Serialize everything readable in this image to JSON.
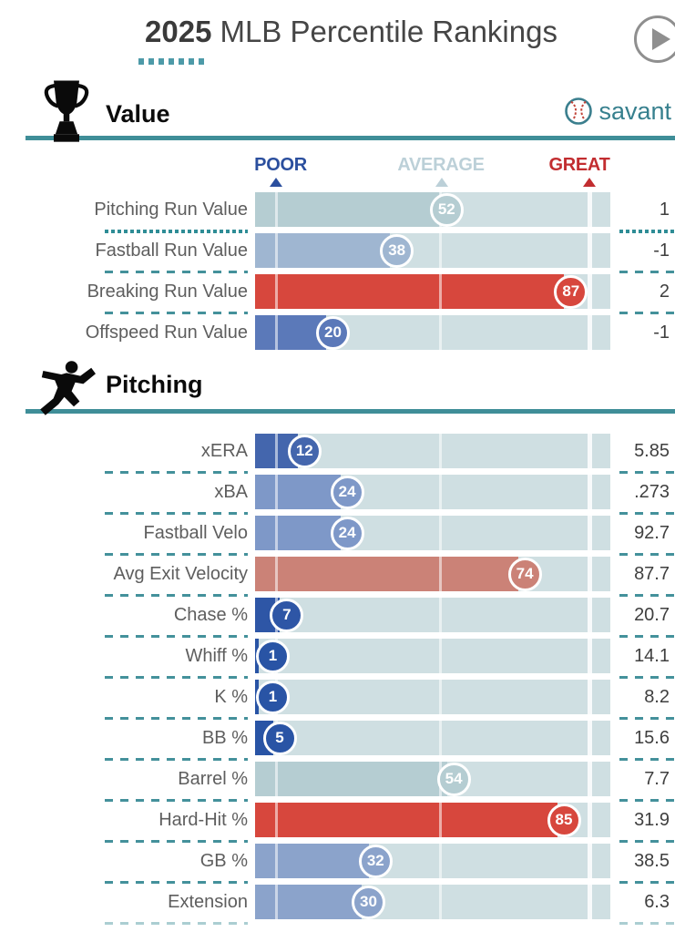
{
  "page": {
    "title_year": "2025",
    "title_rest": "MLB Percentile Rankings"
  },
  "controls": {
    "play_button": "play"
  },
  "brand": {
    "logo_text": "savant"
  },
  "scale_labels": {
    "poor": "POOR",
    "average": "AVERAGE",
    "great": "GREAT"
  },
  "colors": {
    "accent_teal": "#3f8e98",
    "separator_teal": "#44919b",
    "track": "#cfdfe2",
    "poor_label": "#2b4f9e",
    "average_label": "#bcd0d8",
    "great_label": "#c22d30",
    "savant_text": "#37808e",
    "title_text": "#454545",
    "row_label": "#5e5e5e",
    "row_value": "#3f3f3f"
  },
  "chart_data": {
    "type": "bar",
    "orientation": "horizontal",
    "title": "2025 MLB Percentile Rankings",
    "scale": {
      "min": 0,
      "max": 100,
      "markers": {
        "poor_pct": 5.9,
        "average_pct": 52,
        "great_pct": 94.1
      }
    },
    "sections": [
      {
        "title": "Value",
        "icon": "trophy-icon",
        "rows": [
          {
            "label": "Pitching Run Value",
            "percentile": 52,
            "value": "1",
            "bar_color": "#b5cdd2",
            "separator_after": "dotted"
          },
          {
            "label": "Fastball Run Value",
            "percentile": 38,
            "value": "-1",
            "bar_color": "#9fb6d1",
            "separator_after": "dashed"
          },
          {
            "label": "Breaking Run Value",
            "percentile": 87,
            "value": "2",
            "bar_color": "#d7473d",
            "separator_after": "dashed"
          },
          {
            "label": "Offspeed Run Value",
            "percentile": 20,
            "value": "-1",
            "bar_color": "#5b79b9",
            "separator_after": "none"
          }
        ]
      },
      {
        "title": "Pitching",
        "icon": "pitcher-icon",
        "rows": [
          {
            "label": "xERA",
            "percentile": 12,
            "value": "5.85",
            "bar_color": "#4466ad",
            "separator_after": "dashed"
          },
          {
            "label": "xBA",
            "percentile": 24,
            "value": ".273",
            "bar_color": "#7e98c8",
            "separator_after": "dashed"
          },
          {
            "label": "Fastball Velo",
            "percentile": 24,
            "value": "92.7",
            "bar_color": "#7e98c8",
            "separator_after": "dashed"
          },
          {
            "label": "Avg Exit Velocity",
            "percentile": 74,
            "value": "87.7",
            "bar_color": "#cb8277",
            "separator_after": "dashed"
          },
          {
            "label": "Chase %",
            "percentile": 7,
            "value": "20.7",
            "bar_color": "#2e56a6",
            "separator_after": "dashed"
          },
          {
            "label": "Whiff %",
            "percentile": 1,
            "value": "14.1",
            "bar_color": "#2954a5",
            "separator_after": "dashed"
          },
          {
            "label": "K %",
            "percentile": 1,
            "value": "8.2",
            "bar_color": "#2954a5",
            "separator_after": "dashed"
          },
          {
            "label": "BB %",
            "percentile": 5,
            "value": "15.6",
            "bar_color": "#2954a5",
            "separator_after": "dashed"
          },
          {
            "label": "Barrel %",
            "percentile": 54,
            "value": "7.7",
            "bar_color": "#b5cdd2",
            "separator_after": "dashed"
          },
          {
            "label": "Hard-Hit %",
            "percentile": 85,
            "value": "31.9",
            "bar_color": "#d7473d",
            "separator_after": "dashed"
          },
          {
            "label": "GB %",
            "percentile": 32,
            "value": "38.5",
            "bar_color": "#8ba3cb",
            "separator_after": "dashed"
          },
          {
            "label": "Extension",
            "percentile": 30,
            "value": "6.3",
            "bar_color": "#8ba3cb",
            "separator_after": "faint-dashed"
          }
        ]
      }
    ]
  }
}
